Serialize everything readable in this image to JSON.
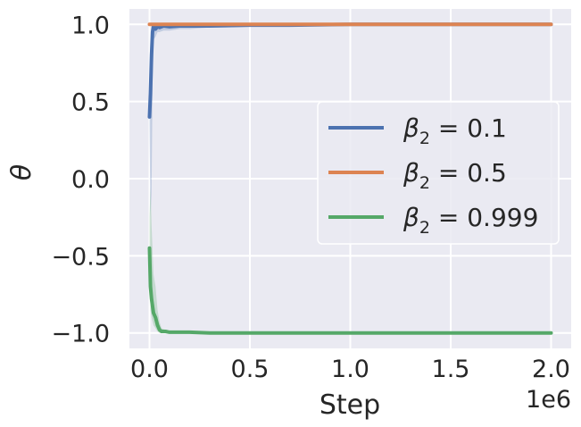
{
  "chart_data": {
    "type": "line",
    "title": "",
    "xlabel": "Step",
    "ylabel": "θ",
    "x_offset_label": "1e6",
    "xlim": [
      -0.1,
      2.1
    ],
    "ylim": [
      -1.1,
      1.1
    ],
    "x_ticks": [
      0.0,
      0.5,
      1.0,
      1.5,
      2.0
    ],
    "x_tick_labels": [
      "0.0",
      "0.5",
      "1.0",
      "1.5",
      "2.0"
    ],
    "y_ticks": [
      1.0,
      0.5,
      0.0,
      -0.5,
      -1.0
    ],
    "y_tick_labels": [
      "1.0",
      "0.5",
      "0.0",
      "−0.5",
      "−1.0"
    ],
    "grid": true,
    "legend_position": "center-right",
    "series": [
      {
        "name": "β2 = 0.1",
        "label_main": "β",
        "label_sub": "2",
        "label_value": " = 0.1",
        "color": "#4c72b0",
        "x": [
          0.0,
          0.005,
          0.01,
          0.015,
          0.02,
          0.03,
          0.04,
          0.05,
          0.07,
          0.1,
          0.15,
          0.2,
          0.3,
          0.5,
          0.7,
          1.0,
          1.5,
          2.0
        ],
        "y": [
          0.4,
          0.55,
          0.8,
          0.95,
          0.99,
          0.97,
          0.985,
          0.98,
          0.99,
          0.985,
          0.99,
          0.99,
          0.99,
          0.995,
          0.995,
          1.0,
          1.0,
          1.0
        ],
        "band_upper": [
          0.45,
          0.7,
          0.98,
          1.0,
          1.0,
          1.0,
          1.0,
          1.0,
          1.0,
          1.0,
          1.0,
          1.0,
          1.0,
          1.0,
          1.0,
          1.0,
          1.0,
          1.0
        ],
        "band_lower": [
          0.35,
          -0.25,
          -0.1,
          0.6,
          0.9,
          0.92,
          0.95,
          0.95,
          0.96,
          0.96,
          0.97,
          0.97,
          0.98,
          0.985,
          0.99,
          0.99,
          0.995,
          0.995
        ]
      },
      {
        "name": "β2 = 0.5",
        "label_main": "β",
        "label_sub": "2",
        "label_value": " = 0.5",
        "color": "#dd8452",
        "x": [
          0.0,
          0.02,
          0.05,
          0.1,
          0.5,
          1.0,
          1.5,
          2.0
        ],
        "y": [
          1.0,
          1.0,
          1.0,
          1.0,
          1.0,
          1.0,
          1.0,
          1.0
        ],
        "band_upper": [
          1.0,
          1.0,
          1.0,
          1.0,
          1.0,
          1.0,
          1.0,
          1.0
        ],
        "band_lower": [
          0.99,
          0.99,
          0.995,
          0.995,
          1.0,
          1.0,
          1.0,
          1.0
        ]
      },
      {
        "name": "β2 = 0.999",
        "label_main": "β",
        "label_sub": "2",
        "label_value": " = 0.999",
        "color": "#55a868",
        "x": [
          0.0,
          0.005,
          0.01,
          0.02,
          0.03,
          0.04,
          0.05,
          0.06,
          0.08,
          0.1,
          0.15,
          0.2,
          0.3,
          0.5,
          0.7,
          1.0,
          1.5,
          2.0
        ],
        "y": [
          -0.45,
          -0.7,
          -0.78,
          -0.87,
          -0.9,
          -0.95,
          -0.98,
          -0.99,
          -0.99,
          -0.995,
          -0.995,
          -0.995,
          -1.0,
          -1.0,
          -1.0,
          -1.0,
          -1.0,
          -1.0
        ],
        "band_upper": [
          -0.25,
          -0.05,
          -0.3,
          -0.62,
          -0.7,
          -0.85,
          -0.93,
          -0.97,
          -0.98,
          -0.985,
          -0.99,
          -0.99,
          -0.995,
          -0.995,
          -0.995,
          -0.995,
          -0.995,
          -0.995
        ],
        "band_lower": [
          -0.5,
          -0.85,
          -0.9,
          -0.95,
          -0.97,
          -0.99,
          -1.0,
          -1.0,
          -1.0,
          -1.0,
          -1.0,
          -1.0,
          -1.0,
          -1.0,
          -1.0,
          -1.0,
          -1.0,
          -1.0
        ]
      }
    ]
  }
}
